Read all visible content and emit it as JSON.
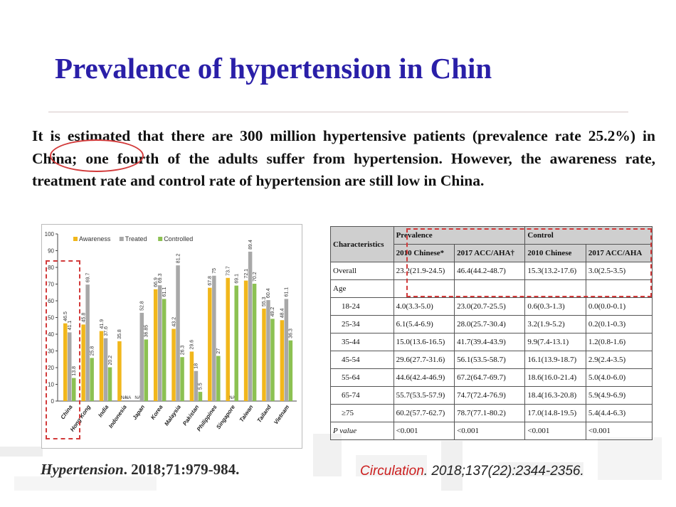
{
  "slide": {
    "title": "Prevalence of hypertension in Chin",
    "intro": "It is estimated that there are 300 million hypertensive patients (prevalence rate 25.2%) in China; one fourth of the adults suffer from hypertension. However, the awareness rate, treatment rate and control rate of hypertension are still low in China."
  },
  "colors": {
    "title": "#2a1fa8",
    "awareness": "#f1b71c",
    "treated": "#a8a8a8",
    "controlled": "#8cc152",
    "highlight": "#d23a3a"
  },
  "chart_data": {
    "type": "bar",
    "categories": [
      "China",
      "Hong Kong",
      "India",
      "Indonesia",
      "Japan",
      "Korea",
      "Malaysia",
      "Pakistan",
      "Philippines",
      "Singapore",
      "Taiwan",
      "Tailand",
      "Vietnam"
    ],
    "series": [
      {
        "name": "Awareness",
        "values": [
          46.5,
          45.8,
          41.9,
          35.8,
          null,
          66.9,
          43.2,
          29.6,
          67.8,
          73.7,
          72.1,
          55.3,
          48.4
        ]
      },
      {
        "name": "Treated",
        "values": [
          41.1,
          69.7,
          37.6,
          null,
          52.8,
          69.3,
          81.2,
          18,
          75,
          null,
          89.4,
          60.4,
          61.1
        ]
      },
      {
        "name": "Controlled",
        "values": [
          13.8,
          25.8,
          20.2,
          null,
          36.85,
          61.1,
          26.3,
          5.5,
          27,
          69.1,
          70.2,
          49.2,
          36.3
        ]
      }
    ],
    "na_labels": [
      "NA",
      "NA",
      "NA",
      "NA"
    ],
    "ylim": [
      0,
      100
    ],
    "yticks": [
      0,
      10,
      20,
      30,
      40,
      50,
      60,
      70,
      80,
      90,
      100
    ],
    "grid": false,
    "legend": "top"
  },
  "table": {
    "header_characteristics": "Characteristics",
    "header_prevalence": "Prevalence",
    "header_control": "Control",
    "subheaders": [
      "2010 Chinese*",
      "2017 ACC/AHA†",
      "2010 Chinese",
      "2017 ACC/AHA"
    ],
    "overall": {
      "label": "Overall",
      "cells": [
        "23.2(21.9-24.5)",
        "46.4(44.2-48.7)",
        "15.3(13.2-17.6)",
        "3.0(2.5-3.5)"
      ]
    },
    "age_label": "Age",
    "rows": [
      {
        "label": "18-24",
        "cells": [
          "4.0(3.3-5.0)",
          "23.0(20.7-25.5)",
          "0.6(0.3-1.3)",
          "0.0(0.0-0.1)"
        ]
      },
      {
        "label": "25-34",
        "cells": [
          "6.1(5.4-6.9)",
          "28.0(25.7-30.4)",
          "3.2(1.9-5.2)",
          "0.2(0.1-0.3)"
        ]
      },
      {
        "label": "35-44",
        "cells": [
          "15.0(13.6-16.5)",
          "41.7(39.4-43.9)",
          "9.9(7.4-13.1)",
          "1.2(0.8-1.6)"
        ]
      },
      {
        "label": "45-54",
        "cells": [
          "29.6(27.7-31.6)",
          "56.1(53.5-58.7)",
          "16.1(13.9-18.7)",
          "2.9(2.4-3.5)"
        ]
      },
      {
        "label": "55-64",
        "cells": [
          "44.6(42.4-46.9)",
          "67.2(64.7-69.7)",
          "18.6(16.0-21.4)",
          "5.0(4.0-6.0)"
        ]
      },
      {
        "label": "65-74",
        "cells": [
          "55.7(53.5-57.9)",
          "74.7(72.4-76.9)",
          "18.4(16.3-20.8)",
          "5.9(4.9-6.9)"
        ]
      },
      {
        "label": "≥75",
        "cells": [
          "60.2(57.7-62.7)",
          "78.7(77.1-80.2)",
          "17.0(14.8-19.5)",
          "5.4(4.4-6.3)"
        ]
      }
    ],
    "pvalue": {
      "label": "P value",
      "cells": [
        "<0.001",
        "<0.001",
        "<0.001",
        "<0.001"
      ]
    }
  },
  "citations": {
    "left_journal": "Hypertension",
    "left_detail": ". 2018;71:979-984.",
    "right_journal": "Circulation",
    "right_detail": ". 2018;137(22):2344-2356."
  }
}
